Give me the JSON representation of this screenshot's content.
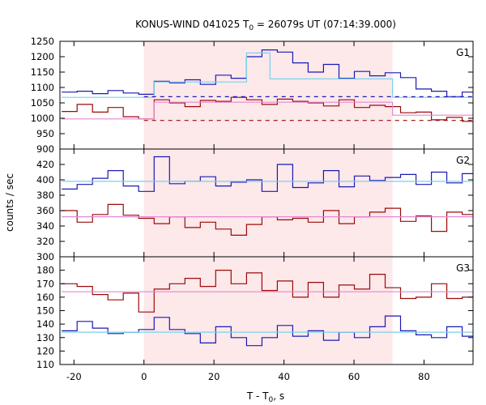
{
  "chart_data": {
    "type": "line",
    "title": "KONUS-WIND 041025 T",
    "title_sub": "0",
    "title_rest": " = 26079s UT (07:14:39.000)",
    "xlabel": "T - T",
    "xlabel_sub": "0",
    "xlabel_rest": ", s",
    "ylabel": "counts / sec",
    "xlim": [
      -24,
      94
    ],
    "xticks": [
      -20,
      0,
      20,
      40,
      60,
      80
    ],
    "shaded_interval": [
      0,
      71
    ],
    "colors": {
      "blue": "#1a1ab4",
      "red": "#9b0a0a",
      "cyan": "#78d2ec",
      "pink": "#e488d2",
      "shade": "#fde8ea"
    },
    "panels": [
      {
        "label": "G1",
        "ylim": [
          900,
          1250
        ],
        "yticks": [
          900,
          950,
          1000,
          1050,
          1100,
          1150,
          1200,
          1250
        ],
        "series": [
          {
            "color": "blue",
            "style": "step",
            "x": [
              -23.5,
              -19.1,
              -14.7,
              -10.3,
              -5.9,
              -1.5,
              2.9,
              7.3,
              11.7,
              16.1,
              20.5,
              24.9,
              29.3,
              33.7,
              38.1,
              42.5,
              46.9,
              51.3,
              55.7,
              60.1,
              64.5,
              68.9,
              73.3,
              77.7,
              82.1,
              86.5,
              90.9
            ],
            "y": [
              1085,
              1088,
              1080,
              1090,
              1082,
              1078,
              1120,
              1115,
              1125,
              1110,
              1140,
              1130,
              1200,
              1222,
              1215,
              1180,
              1150,
              1175,
              1130,
              1152,
              1138,
              1148,
              1132,
              1095,
              1088,
              1070,
              1085
            ]
          },
          {
            "color": "red",
            "style": "step",
            "x": [
              -23.5,
              -19.1,
              -14.7,
              -10.3,
              -5.9,
              -1.5,
              2.9,
              7.3,
              11.7,
              16.1,
              20.5,
              24.9,
              29.3,
              33.7,
              38.1,
              42.5,
              46.9,
              51.3,
              55.7,
              60.1,
              64.5,
              68.9,
              73.3,
              77.7,
              82.1,
              86.5,
              90.9
            ],
            "y": [
              1022,
              1045,
              1020,
              1035,
              1005,
              998,
              1060,
              1050,
              1038,
              1058,
              1055,
              1068,
              1060,
              1045,
              1062,
              1055,
              1050,
              1040,
              1060,
              1035,
              1042,
              1038,
              1018,
              1020,
              995,
              1003,
              990
            ]
          },
          {
            "color": "cyan",
            "style": "step",
            "x": [
              -23.5,
              0,
              2.9,
              29.3,
              36,
              71,
              94
            ],
            "y": [
              1068,
              1068,
              1118,
              1212,
              1128,
              1068,
              1068
            ]
          },
          {
            "color": "pink",
            "style": "step",
            "x": [
              -23.5,
              0,
              2.9,
              71,
              94
            ],
            "y": [
              998,
              998,
              1052,
              1010,
              1010
            ]
          },
          {
            "color": "blue",
            "style": "dashed",
            "x": [
              0,
              94
            ],
            "y": [
              1070,
              1070
            ]
          },
          {
            "color": "red",
            "style": "dashed",
            "x": [
              0,
              94
            ],
            "y": [
              993,
              993
            ]
          }
        ]
      },
      {
        "label": "G2",
        "ylim": [
          300,
          440
        ],
        "yticks": [
          300,
          320,
          340,
          360,
          380,
          400,
          420
        ],
        "series": [
          {
            "color": "blue",
            "style": "step",
            "x": [
              -23.5,
              -19.1,
              -14.7,
              -10.3,
              -5.9,
              -1.5,
              2.9,
              7.3,
              11.7,
              16.1,
              20.5,
              24.9,
              29.3,
              33.7,
              38.1,
              42.5,
              46.9,
              51.3,
              55.7,
              60.1,
              64.5,
              68.9,
              73.3,
              77.7,
              82.1,
              86.5,
              90.9
            ],
            "y": [
              388,
              394,
              402,
              412,
              392,
              385,
              430,
              395,
              398,
              404,
              392,
              397,
              400,
              385,
              420,
              390,
              396,
              412,
              391,
              405,
              399,
              403,
              407,
              394,
              410,
              396,
              408
            ]
          },
          {
            "color": "red",
            "style": "step",
            "x": [
              -23.5,
              -19.1,
              -14.7,
              -10.3,
              -5.9,
              -1.5,
              2.9,
              7.3,
              11.7,
              16.1,
              20.5,
              24.9,
              29.3,
              33.7,
              38.1,
              42.5,
              46.9,
              51.3,
              55.7,
              60.1,
              64.5,
              68.9,
              73.3,
              77.7,
              82.1,
              86.5,
              90.9
            ],
            "y": [
              360,
              345,
              355,
              368,
              354,
              350,
              343,
              352,
              338,
              345,
              336,
              328,
              342,
              352,
              348,
              350,
              345,
              360,
              343,
              352,
              358,
              363,
              346,
              353,
              333,
              358,
              355
            ]
          },
          {
            "color": "cyan",
            "style": "line",
            "x": [
              -23.5,
              94
            ],
            "y": [
              398,
              398
            ]
          },
          {
            "color": "pink",
            "style": "line",
            "x": [
              -23.5,
              94
            ],
            "y": [
              352,
              352
            ]
          }
        ]
      },
      {
        "label": "G3",
        "ylim": [
          110,
          190
        ],
        "yticks": [
          110,
          120,
          130,
          140,
          150,
          160,
          170,
          180
        ],
        "series": [
          {
            "color": "red",
            "style": "step",
            "x": [
              -23.5,
              -19.1,
              -14.7,
              -10.3,
              -5.9,
              -1.5,
              2.9,
              7.3,
              11.7,
              16.1,
              20.5,
              24.9,
              29.3,
              33.7,
              38.1,
              42.5,
              46.9,
              51.3,
              55.7,
              60.1,
              64.5,
              68.9,
              73.3,
              77.7,
              82.1,
              86.5,
              90.9
            ],
            "y": [
              170,
              168,
              162,
              158,
              163,
              149,
              166,
              170,
              174,
              168,
              180,
              170,
              178,
              165,
              172,
              160,
              171,
              160,
              169,
              166,
              177,
              167,
              159,
              160,
              170,
              159,
              160
            ]
          },
          {
            "color": "blue",
            "style": "step",
            "x": [
              -23.5,
              -19.1,
              -14.7,
              -10.3,
              -5.9,
              -1.5,
              2.9,
              7.3,
              11.7,
              16.1,
              20.5,
              24.9,
              29.3,
              33.7,
              38.1,
              42.5,
              46.9,
              51.3,
              55.7,
              60.1,
              64.5,
              68.9,
              73.3,
              77.7,
              82.1,
              86.5,
              90.9
            ],
            "y": [
              135,
              142,
              137,
              133,
              134,
              136,
              145,
              136,
              133,
              126,
              138,
              130,
              124,
              130,
              139,
              131,
              135,
              128,
              134,
              130,
              138,
              146,
              135,
              132,
              130,
              138,
              131
            ]
          },
          {
            "color": "pink",
            "style": "line",
            "x": [
              -23.5,
              94
            ],
            "y": [
              164,
              164
            ]
          },
          {
            "color": "cyan",
            "style": "line",
            "x": [
              -23.5,
              94
            ],
            "y": [
              134,
              134
            ]
          }
        ]
      }
    ]
  }
}
